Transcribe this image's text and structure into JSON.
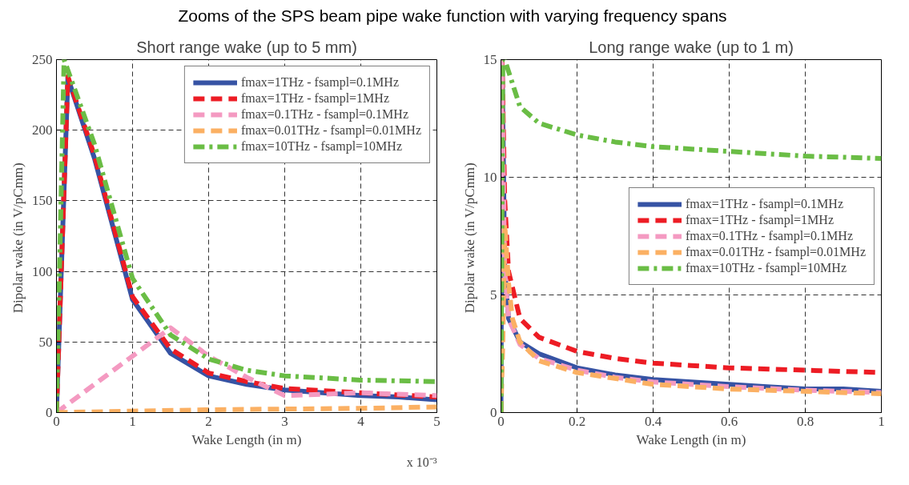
{
  "chart_data": [
    {
      "type": "line",
      "title": "Short range wake (up to 5 mm)",
      "subtitle": "Zooms of the SPS beam pipe wake function with varying frequency spans",
      "xlabel": "Wake Length (in m)",
      "ylabel": "Dipolar wake (in  V/pCmm)",
      "annotations": [
        "x 10⁻³"
      ],
      "xlim": [
        0,
        5
      ],
      "xticks": [
        0,
        1,
        2,
        3,
        4,
        5
      ],
      "ylim": [
        0,
        250
      ],
      "yticks": [
        0,
        50,
        100,
        150,
        200,
        250
      ],
      "grid": true,
      "legend": "top right",
      "marker": "none",
      "series": [
        {
          "name": "fmax=1THz - fsampl=0.1MHz",
          "color": "#3653a4",
          "line_style": "solid",
          "x": [
            0,
            0.15,
            0.5,
            1,
            1.5,
            2,
            2.5,
            3,
            3.5,
            4,
            4.5,
            5
          ],
          "values": [
            0,
            237,
            180,
            80,
            42,
            26,
            20,
            16,
            14,
            12,
            11,
            9
          ]
        },
        {
          "name": "fmax=1THz - fsampl=1MHz",
          "color": "#ed1c24",
          "line_style": "dashed",
          "x": [
            0,
            0.15,
            0.5,
            1,
            1.5,
            2,
            2.5,
            3,
            4,
            5
          ],
          "values": [
            0,
            238,
            182,
            82,
            45,
            28,
            22,
            17,
            14,
            11
          ]
        },
        {
          "name": "fmax=0.1THz - fsampl=0.1MHz",
          "color": "#f49ac1",
          "line_style": "dashed",
          "x": [
            0,
            1.5,
            2,
            2.5,
            3,
            4,
            5
          ],
          "values": [
            0,
            60,
            40,
            25,
            12,
            14,
            12
          ]
        },
        {
          "name": "fmax=0.01THz - fsampl=0.01MHz",
          "color": "#fbb063",
          "line_style": "dashed",
          "x": [
            0,
            1,
            2,
            3,
            4,
            5
          ],
          "values": [
            0,
            1,
            2,
            2.5,
            3,
            4
          ]
        },
        {
          "name": "fmax=10THz - fsampl=10MHz",
          "color": "#6abd45",
          "line_style": "dashdot",
          "x": [
            0,
            0.1,
            0.5,
            1,
            1.5,
            2,
            2.5,
            3,
            4,
            5
          ],
          "values": [
            0,
            250,
            190,
            95,
            55,
            38,
            30,
            26,
            23,
            22
          ]
        }
      ]
    },
    {
      "type": "line",
      "title": "Long range wake (up to 1 m)",
      "xlabel": "Wake Length (in m)",
      "ylabel": "Dipolar wake (in  V/pCmm)",
      "xlim": [
        0,
        1
      ],
      "xticks": [
        0,
        0.2,
        0.4,
        0.6,
        0.8,
        1
      ],
      "ylim": [
        0,
        15
      ],
      "yticks": [
        0,
        5,
        10,
        15
      ],
      "grid": true,
      "legend": "right",
      "marker": "none",
      "series": [
        {
          "name": "fmax=1THz - fsampl=0.1MHz",
          "color": "#3653a4",
          "line_style": "solid",
          "x": [
            0,
            0.003,
            0.01,
            0.02,
            0.05,
            0.1,
            0.2,
            0.3,
            0.4,
            0.5,
            0.6,
            0.7,
            0.8,
            0.9,
            1
          ],
          "values": [
            0,
            15,
            6,
            4,
            3,
            2.5,
            1.9,
            1.6,
            1.4,
            1.3,
            1.2,
            1.1,
            1.0,
            1.0,
            0.9
          ]
        },
        {
          "name": "fmax=1THz - fsampl=1MHz",
          "color": "#ed1c24",
          "line_style": "dashed",
          "x": [
            0,
            0.003,
            0.01,
            0.02,
            0.05,
            0.1,
            0.2,
            0.3,
            0.4,
            0.5,
            0.6,
            0.8,
            1
          ],
          "values": [
            0,
            15,
            9,
            6,
            4,
            3.2,
            2.6,
            2.3,
            2.1,
            2.0,
            1.9,
            1.8,
            1.7
          ]
        },
        {
          "name": "fmax=0.1THz - fsampl=0.1MHz",
          "color": "#f49ac1",
          "line_style": "dashed",
          "x": [
            0,
            0.002,
            0.01,
            0.02,
            0.05,
            0.1,
            0.2,
            0.3,
            0.4,
            0.6,
            0.8,
            1
          ],
          "values": [
            0,
            15,
            6,
            4,
            2.9,
            2.3,
            1.8,
            1.5,
            1.3,
            1.1,
            0.95,
            0.85
          ]
        },
        {
          "name": "fmax=0.01THz - fsampl=0.01MHz",
          "color": "#fbb063",
          "line_style": "dashed",
          "x": [
            0,
            0.005,
            0.01,
            0.02,
            0.03,
            0.05,
            0.1,
            0.2,
            0.4,
            0.6,
            0.8,
            1
          ],
          "values": [
            0,
            3,
            8,
            5.5,
            4,
            3,
            2.2,
            1.7,
            1.2,
            1.0,
            0.9,
            0.8
          ]
        },
        {
          "name": "fmax=10THz - fsampl=10MHz",
          "color": "#6abd45",
          "line_style": "dashdot",
          "x": [
            0,
            0.005,
            0.01,
            0.05,
            0.1,
            0.2,
            0.3,
            0.4,
            0.5,
            0.6,
            0.7,
            0.8,
            1
          ],
          "values": [
            0,
            15,
            15,
            13,
            12.3,
            11.8,
            11.5,
            11.3,
            11.2,
            11.1,
            11.0,
            10.9,
            10.8
          ]
        }
      ]
    }
  ]
}
